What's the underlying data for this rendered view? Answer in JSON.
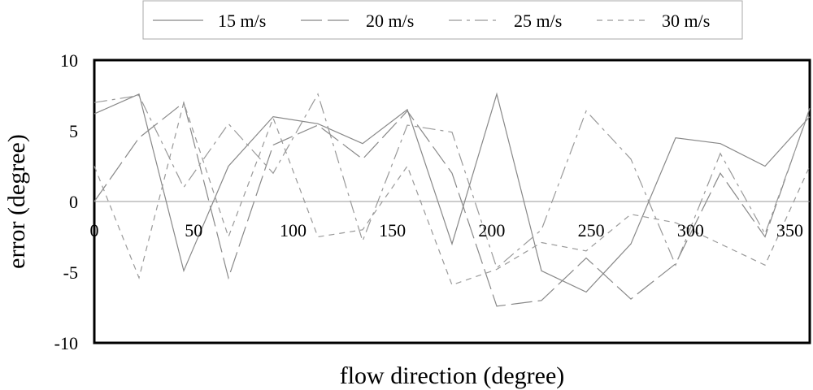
{
  "chart_data": {
    "type": "line",
    "title": "",
    "xlabel": "flow direction (degree)",
    "ylabel": "error (degree)",
    "xlim": [
      0,
      360
    ],
    "ylim": [
      -10,
      10
    ],
    "x_ticks": [
      "0",
      "50",
      "100",
      "150",
      "200",
      "250",
      "300",
      "350"
    ],
    "y_ticks": [
      "10",
      "5",
      "0",
      "-5",
      "-10"
    ],
    "grid": false,
    "legend_position": "top",
    "x": [
      0,
      22.5,
      45,
      67.5,
      90,
      112.5,
      135,
      157.5,
      180,
      202.5,
      225,
      247.5,
      270,
      292.5,
      315,
      337.5,
      360
    ],
    "series": [
      {
        "name": "15 m/s",
        "dash": "solid",
        "color": "#888888",
        "values": [
          6.2,
          7.6,
          -4.9,
          2.5,
          6.0,
          5.5,
          4.1,
          6.5,
          -3.0,
          7.6,
          -4.9,
          -6.4,
          -3.0,
          4.5,
          4.1,
          2.5,
          6.0
        ]
      },
      {
        "name": "20 m/s",
        "dash": "longdash",
        "color": "#888888",
        "values": [
          0.0,
          4.5,
          7.0,
          -5.4,
          4.0,
          5.4,
          3.0,
          6.4,
          2.0,
          -7.4,
          -7.0,
          -4.0,
          -6.9,
          -4.4,
          2.0,
          -2.5,
          6.6
        ]
      },
      {
        "name": "25 m/s",
        "dash": "dashdot",
        "color": "#999999",
        "values": [
          7.0,
          7.5,
          1.0,
          5.5,
          2.0,
          7.6,
          -2.8,
          5.4,
          4.9,
          -4.7,
          -2.0,
          6.4,
          3.0,
          -4.5,
          3.4,
          -2.3,
          6.5
        ]
      },
      {
        "name": "30 m/s",
        "dash": "shortdash",
        "color": "#999999",
        "values": [
          2.5,
          -5.4,
          7.0,
          -2.5,
          5.9,
          -2.5,
          -2.0,
          2.5,
          -5.9,
          -4.8,
          -2.9,
          -3.5,
          -0.9,
          -1.5,
          -3.0,
          -4.5,
          2.5
        ]
      }
    ]
  }
}
